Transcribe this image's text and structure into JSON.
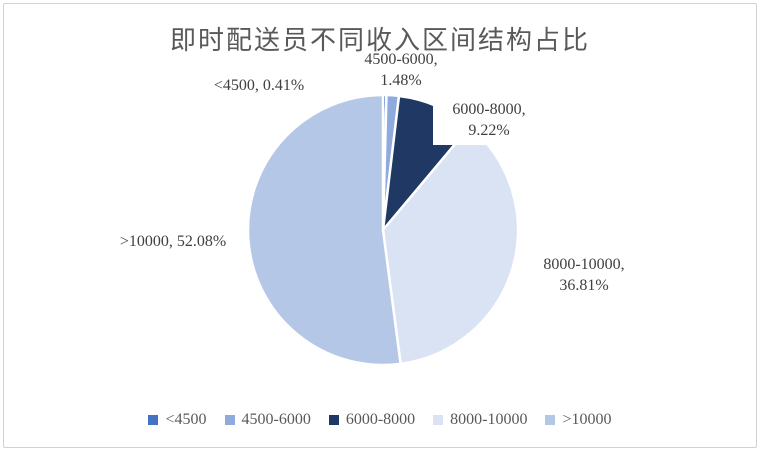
{
  "title": "即时配送员不同收入区间结构占比",
  "chart_data": {
    "type": "pie",
    "title": "即时配送员不同收入区间结构占比",
    "categories": [
      "<4500",
      "4500-6000",
      "6000-8000",
      "8000-10000",
      ">10000"
    ],
    "values": [
      0.41,
      1.48,
      9.22,
      36.81,
      52.08
    ],
    "unit": "%",
    "colors": [
      "#4472C4",
      "#8FAADC",
      "#1F3864",
      "#DAE3F3",
      "#B4C7E7"
    ],
    "slice_border_color": "#FFFFFF",
    "start_angle_deg": 0,
    "direction": "clockwise",
    "legend_position": "bottom",
    "data_labels": [
      "<4500, 0.41%",
      "4500-6000, 1.48%",
      "6000-8000, 9.22%",
      "8000-10000, 36.81%",
      ">10000, 52.08%"
    ]
  },
  "labels": {
    "lt4500": {
      "line1": "<4500, 0.41%"
    },
    "r4500_6000": {
      "line1": "4500-6000,",
      "line2": "1.48%"
    },
    "r6000_8000": {
      "line1": "6000-8000,",
      "line2": "9.22%"
    },
    "r8000_10000": {
      "line1": "8000-10000,",
      "line2": "36.81%"
    },
    "gt10000": {
      "line1": ">10000, 52.08%"
    }
  },
  "legend": {
    "items": [
      {
        "label": "<4500",
        "color": "#4472C4"
      },
      {
        "label": "4500-6000",
        "color": "#8FAADC"
      },
      {
        "label": "6000-8000",
        "color": "#1F3864"
      },
      {
        "label": "8000-10000",
        "color": "#DAE3F3"
      },
      {
        "label": ">10000",
        "color": "#B4C7E7"
      }
    ]
  }
}
